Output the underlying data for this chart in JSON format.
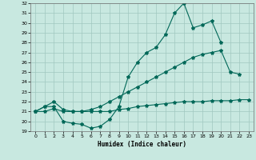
{
  "title": "",
  "xlabel": "Humidex (Indice chaleur)",
  "bg_color": "#c8e8e0",
  "grid_color": "#a0c8c0",
  "line_color": "#006858",
  "xlim": [
    -0.5,
    23.5
  ],
  "ylim": [
    19,
    32
  ],
  "yticks": [
    19,
    20,
    21,
    22,
    23,
    24,
    25,
    26,
    27,
    28,
    29,
    30,
    31,
    32
  ],
  "xticks": [
    0,
    1,
    2,
    3,
    4,
    5,
    6,
    7,
    8,
    9,
    10,
    11,
    12,
    13,
    14,
    15,
    16,
    17,
    18,
    19,
    20,
    21,
    22,
    23
  ],
  "line1_x": [
    0,
    1,
    2,
    3,
    4,
    5,
    6,
    7,
    8,
    9,
    10,
    11,
    12,
    13,
    14,
    15,
    16,
    17,
    18,
    19,
    20
  ],
  "line1_y": [
    21.0,
    21.5,
    21.5,
    20.0,
    19.8,
    19.7,
    19.3,
    19.5,
    20.2,
    21.5,
    24.5,
    26.0,
    27.0,
    27.5,
    28.8,
    31.0,
    32.0,
    29.5,
    29.8,
    30.2,
    28.0
  ],
  "line2_x": [
    0,
    1,
    2,
    3,
    4,
    5,
    6,
    7,
    8,
    9,
    10,
    11,
    12,
    13,
    14,
    15,
    16,
    17,
    18,
    19,
    20,
    21,
    22
  ],
  "line2_y": [
    21.0,
    21.5,
    22.0,
    21.2,
    21.0,
    21.0,
    21.2,
    21.5,
    22.0,
    22.5,
    23.0,
    23.5,
    24.0,
    24.5,
    25.0,
    25.5,
    26.0,
    26.5,
    26.8,
    27.0,
    27.2,
    25.0,
    24.8
  ],
  "line3_x": [
    0,
    1,
    2,
    3,
    4,
    5,
    6,
    7,
    8,
    9,
    10,
    11,
    12,
    13,
    14,
    15,
    16,
    17,
    18,
    19,
    20,
    21,
    22,
    23
  ],
  "line3_y": [
    21.0,
    21.0,
    21.3,
    21.0,
    21.0,
    21.0,
    21.0,
    21.0,
    21.0,
    21.2,
    21.3,
    21.5,
    21.6,
    21.7,
    21.8,
    21.9,
    22.0,
    22.0,
    22.0,
    22.1,
    22.1,
    22.1,
    22.2,
    22.2
  ]
}
